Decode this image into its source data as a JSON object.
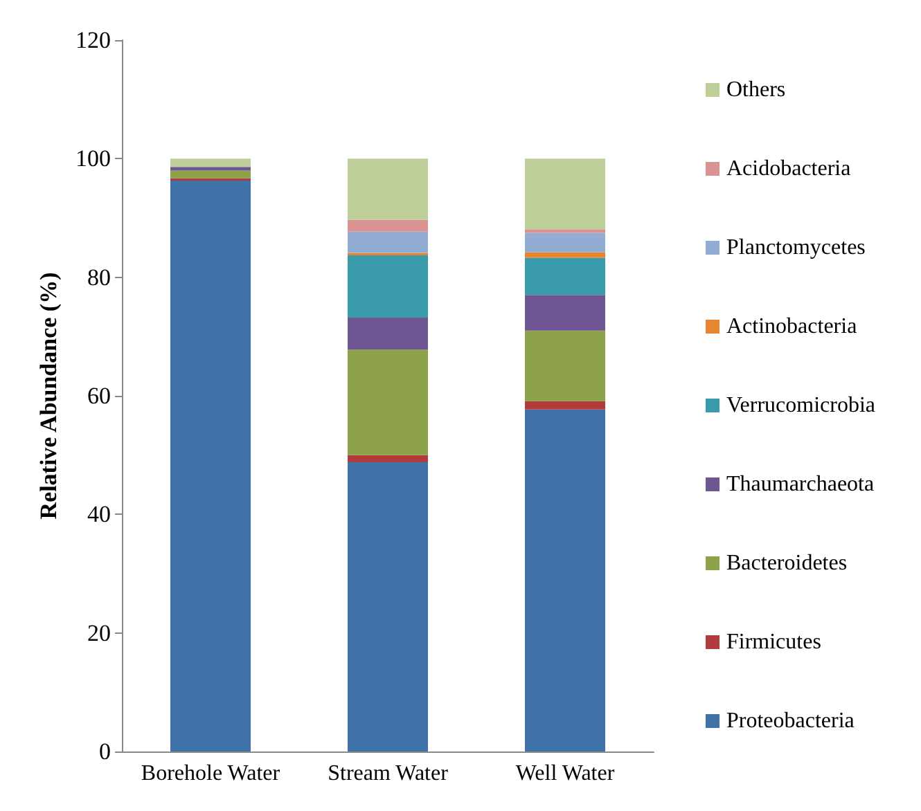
{
  "chart_data": {
    "type": "bar",
    "stacked": true,
    "ylabel": "Relative Abundance (%)",
    "categories": [
      "Borehole Water",
      "Stream Water",
      "Well Water"
    ],
    "ylim": [
      0,
      120
    ],
    "yticks": [
      0,
      20,
      40,
      60,
      80,
      100,
      120
    ],
    "grid": false,
    "legend": "right",
    "series": [
      {
        "name": "Proteobacteria",
        "color": "#3f72a6",
        "values": [
          96.3,
          48.8,
          57.7
        ]
      },
      {
        "name": "Firmicutes",
        "color": "#b03c3c",
        "values": [
          0.4,
          1.2,
          1.4
        ]
      },
      {
        "name": "Bacteroidetes",
        "color": "#8ea24a",
        "values": [
          1.3,
          17.8,
          11.9
        ]
      },
      {
        "name": "Thaumarchaeota",
        "color": "#6e5693",
        "values": [
          0.6,
          5.4,
          6.0
        ]
      },
      {
        "name": "Verrucomicrobia",
        "color": "#3a9bad",
        "values": [
          0,
          10.5,
          6.3
        ]
      },
      {
        "name": "Actinobacteria",
        "color": "#e8862e",
        "values": [
          0,
          0.4,
          0.9
        ]
      },
      {
        "name": "Planctomycetes",
        "color": "#92acd4",
        "values": [
          0,
          3.6,
          3.3
        ]
      },
      {
        "name": "Acidobacteria",
        "color": "#d99393",
        "values": [
          0,
          2.0,
          0.6
        ]
      },
      {
        "name": "Others",
        "color": "#bfcf9a",
        "values": [
          1.4,
          10.3,
          11.9
        ]
      }
    ]
  }
}
